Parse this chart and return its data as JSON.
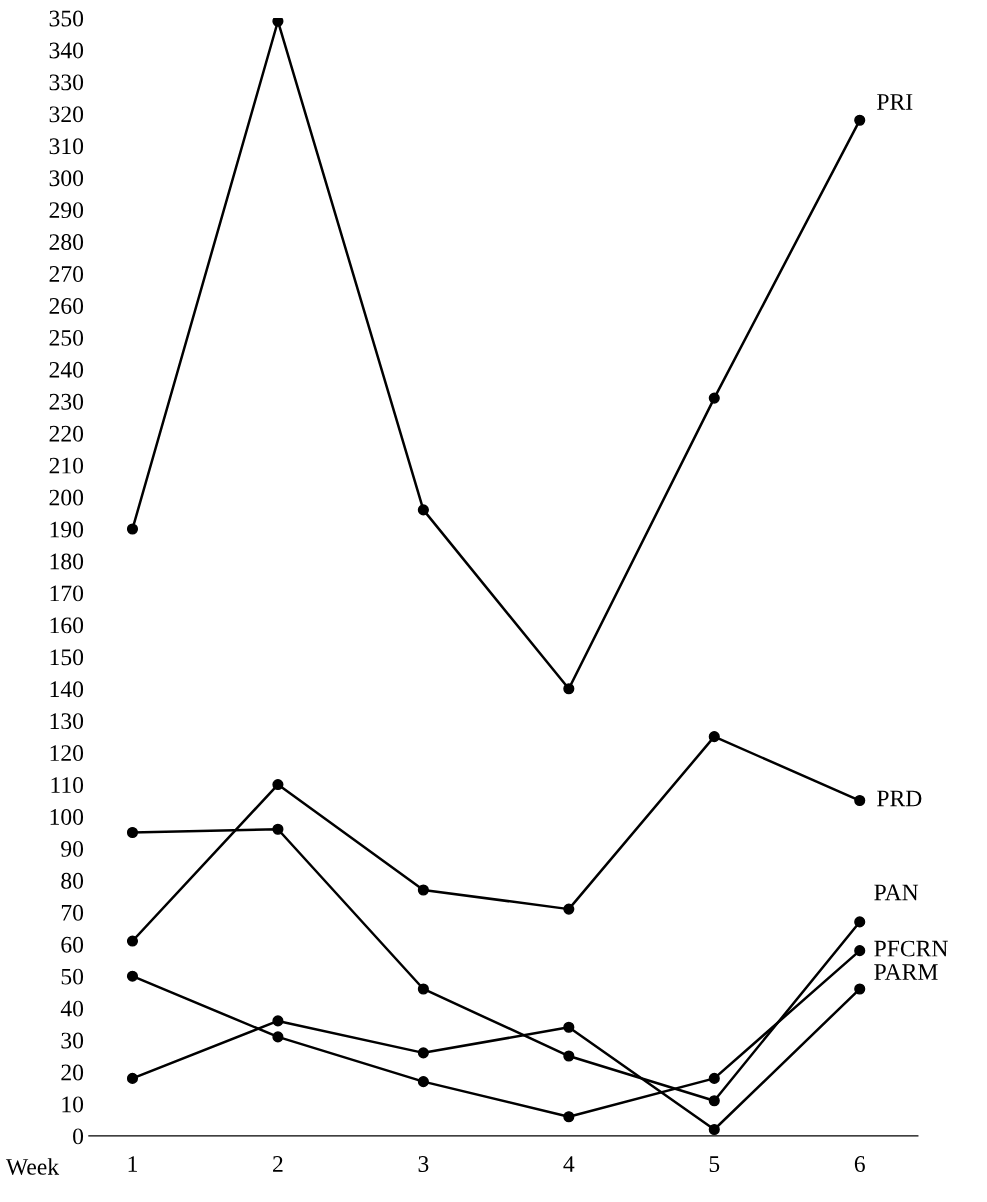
{
  "chart_data": {
    "type": "line",
    "xlabel": "Week",
    "categories": [
      "1",
      "2",
      "3",
      "4",
      "5",
      "6"
    ],
    "series": [
      {
        "name": "PRI",
        "color": "#000000",
        "values": [
          190,
          349,
          196,
          140,
          231,
          318
        ]
      },
      {
        "name": "PRD",
        "color": "#000000",
        "values": [
          61,
          110,
          77,
          71,
          125,
          105
        ]
      },
      {
        "name": "PAN",
        "color": "#000000",
        "values": [
          95,
          96,
          46,
          25,
          11,
          67
        ]
      },
      {
        "name": "PFCRN",
        "color": "#000000",
        "values": [
          50,
          31,
          17,
          6,
          18,
          58
        ]
      },
      {
        "name": "PARM",
        "color": "#000000",
        "values": [
          18,
          36,
          26,
          34,
          2,
          46
        ]
      }
    ],
    "ylim": [
      0,
      350
    ],
    "yticks": [
      0,
      10,
      20,
      30,
      40,
      50,
      60,
      70,
      80,
      90,
      100,
      110,
      120,
      130,
      140,
      150,
      160,
      170,
      180,
      190,
      200,
      210,
      220,
      230,
      240,
      250,
      260,
      270,
      280,
      290,
      300,
      310,
      320,
      330,
      340,
      350
    ],
    "grid": false,
    "legend": false,
    "marker": "circle",
    "line_style": "solid"
  }
}
